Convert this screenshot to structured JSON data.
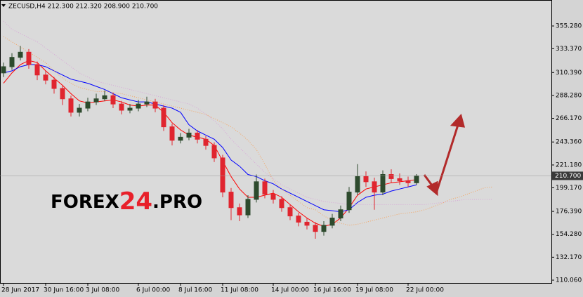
{
  "chart_data": {
    "type": "candlestick",
    "title": "ZECUSD,H4 212.300 212.320 208.900 210.700",
    "watermark": {
      "main": "FOREX",
      "accent": "24",
      "tail": ".PRO"
    },
    "price_tag": {
      "value": 210.7,
      "label": "210.700"
    },
    "categories": [
      "28 Jun 2017",
      null,
      null,
      null,
      null,
      "30 Jun 16:00",
      null,
      null,
      null,
      null,
      "3 Jul 08:00",
      null,
      null,
      null,
      null,
      null,
      "6 Jul 00:00",
      null,
      null,
      null,
      null,
      "8 Jul 16:00",
      null,
      null,
      null,
      null,
      "11 Jul 08:00",
      null,
      null,
      null,
      null,
      null,
      "14 Jul 00:00",
      null,
      null,
      null,
      null,
      "16 Jul 16:00",
      null,
      null,
      null,
      null,
      "19 Jul 08:00",
      null,
      null,
      null,
      null,
      null,
      "22 Jul 00:00",
      null,
      null,
      null,
      null,
      null,
      null,
      null,
      null,
      null,
      null
    ],
    "open": [
      310,
      316,
      325,
      330,
      318,
      308,
      303,
      295,
      285,
      272,
      276,
      282,
      285,
      288,
      280,
      274,
      276,
      280,
      282,
      276,
      258,
      245,
      248,
      252,
      246,
      240,
      228,
      195,
      180,
      173,
      188,
      205,
      193,
      188,
      180,
      172,
      166,
      163,
      157,
      163,
      170,
      178,
      195,
      210,
      205,
      195,
      212,
      208,
      206,
      204,
      null,
      null,
      null,
      null,
      null,
      null,
      null,
      null,
      null
    ],
    "high": [
      320,
      329,
      336,
      333,
      321,
      312,
      306,
      298,
      288,
      280,
      286,
      290,
      293,
      291,
      283,
      280,
      284,
      287,
      285,
      279,
      261,
      252,
      256,
      255,
      249,
      243,
      231,
      199,
      184,
      192,
      212,
      208,
      197,
      191,
      183,
      175,
      170,
      166,
      167,
      174,
      182,
      200,
      222,
      215,
      209,
      216,
      217,
      213,
      210,
      212.32,
      null,
      null,
      null,
      null,
      null,
      null,
      null,
      null,
      null
    ],
    "low": [
      306,
      313,
      322,
      314,
      303,
      299,
      290,
      279,
      268,
      268,
      273,
      279,
      283,
      276,
      270,
      271,
      273,
      277,
      272,
      254,
      240,
      242,
      245,
      242,
      236,
      224,
      190,
      168,
      167,
      170,
      185,
      189,
      184,
      176,
      168,
      162,
      159,
      150,
      153,
      160,
      167,
      175,
      192,
      200,
      178,
      192,
      204,
      202,
      200,
      202,
      null,
      null,
      null,
      null,
      null,
      null,
      null,
      null,
      null
    ],
    "close": [
      316,
      325,
      330,
      318,
      308,
      303,
      295,
      285,
      272,
      276,
      282,
      285,
      288,
      280,
      274,
      276,
      280,
      282,
      276,
      258,
      245,
      248,
      252,
      246,
      240,
      228,
      195,
      180,
      173,
      188,
      205,
      193,
      188,
      180,
      172,
      166,
      163,
      157,
      163,
      170,
      178,
      195,
      210,
      205,
      195,
      212,
      208,
      206,
      204,
      210.7,
      null,
      null,
      null,
      null,
      null,
      null,
      null,
      null,
      null
    ],
    "up_color": "#2d4a2d",
    "down_color": "#e0252f",
    "lines": [
      {
        "color": "#ff0000",
        "dash": false,
        "values": [
          300,
          310,
          318,
          322,
          320,
          312,
          305,
          298,
          290,
          283,
          281,
          282,
          283,
          284,
          282,
          279,
          278,
          279,
          279,
          272,
          262,
          255,
          250,
          248,
          246,
          240,
          225,
          210,
          198,
          190,
          190,
          192,
          194,
          190,
          183,
          176,
          170,
          165,
          162,
          164,
          170,
          180,
          192,
          198,
          200,
          202,
          204,
          205,
          206,
          207,
          null,
          null,
          null,
          null,
          null,
          null,
          null,
          null,
          null
        ]
      },
      {
        "color": "#0000ff",
        "dash": false,
        "values": [
          310,
          312,
          316,
          318,
          318,
          316,
          312,
          308,
          304,
          302,
          300,
          297,
          294,
          290,
          286,
          284,
          282,
          282,
          280,
          278,
          276,
          272,
          260,
          254,
          250,
          246,
          238,
          226,
          220,
          212,
          210,
          206,
          203,
          198,
          194,
          190,
          186,
          182,
          178,
          177,
          176,
          178,
          185,
          190,
          192,
          193,
          196,
          198,
          200,
          202,
          null,
          null,
          null,
          null,
          null,
          null,
          null,
          null,
          null
        ]
      },
      {
        "color": "#f4a460",
        "dash": true,
        "values": [
          345,
          340,
          335,
          330,
          325,
          320,
          312,
          305,
          300,
          296,
          294,
          292,
          292,
          291,
          290,
          288,
          286,
          284,
          282,
          280,
          278,
          276,
          274,
          272,
          270,
          266,
          262,
          258,
          252,
          245,
          236,
          222,
          206,
          198,
          192,
          186,
          180,
          178,
          172,
          168,
          165,
          163,
          164,
          166,
          168,
          170,
          172,
          174,
          175,
          176,
          178,
          181,
          184,
          188,
          190,
          193,
          196,
          199,
          200
        ]
      },
      {
        "color": "#d8a8d8",
        "dash": true,
        "values": [
          360,
          352,
          348,
          344,
          340,
          334,
          328,
          322,
          316,
          310,
          306,
          302,
          300,
          298,
          296,
          294,
          292,
          290,
          288,
          286,
          284,
          282,
          280,
          276,
          270,
          264,
          256,
          246,
          238,
          230,
          222,
          214,
          208,
          202,
          198,
          194,
          190,
          188,
          186,
          185,
          184,
          183,
          183,
          183,
          183,
          183,
          183,
          183,
          183,
          183,
          183,
          184,
          185,
          186,
          187,
          188,
          188,
          188,
          188
        ]
      }
    ],
    "ylim": [
      107.35,
      380.34
    ],
    "yticks": [
      {
        "value": 355.28,
        "label": "355.280"
      },
      {
        "value": 333.37,
        "label": "333.370"
      },
      {
        "value": 310.39,
        "label": "310.390"
      },
      {
        "value": 288.28,
        "label": "288.280"
      },
      {
        "value": 266.17,
        "label": "266.170"
      },
      {
        "value": 243.36,
        "label": "243.360"
      },
      {
        "value": 221.18,
        "label": "221.180"
      },
      {
        "value": 199.17,
        "label": "199.170"
      },
      {
        "value": 176.39,
        "label": "176.390"
      },
      {
        "value": 154.28,
        "label": "154.280"
      },
      {
        "value": 132.17,
        "label": "132.170"
      },
      {
        "value": 110.06,
        "label": "110.060"
      }
    ]
  }
}
